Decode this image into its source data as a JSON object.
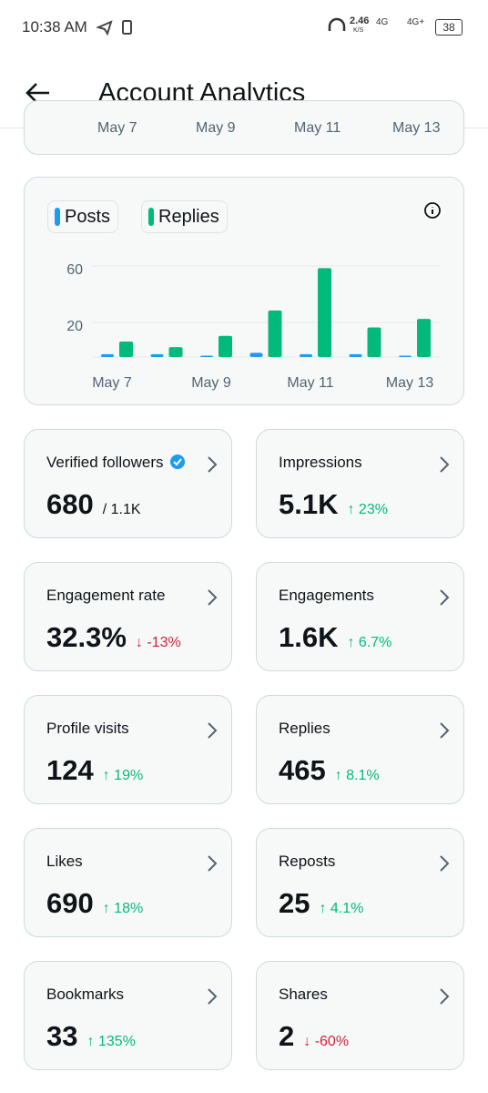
{
  "status_bar": {
    "time": "10:38 AM",
    "speed": "2.46",
    "speed_unit": "K/S",
    "network_1": "4G",
    "network_2": "4G+",
    "battery": "38"
  },
  "header": {
    "title": "Account Analytics"
  },
  "previous_card": {
    "labels": [
      "May 7",
      "May 9",
      "May 11",
      "May 13"
    ]
  },
  "chart_data": {
    "type": "bar",
    "categories": [
      "May 7",
      null,
      "May 9",
      null,
      "May 11",
      null,
      "May 13"
    ],
    "series": [
      {
        "name": "Posts",
        "color": "#1d9bf0",
        "values": [
          2,
          2,
          1,
          3,
          2,
          2,
          1
        ]
      },
      {
        "name": "Replies",
        "color": "#00ba7c",
        "values": [
          11,
          7,
          15,
          33,
          63,
          21,
          27
        ]
      }
    ],
    "ylim": [
      0,
      66
    ],
    "yticks": [
      20,
      60
    ],
    "grid": true
  },
  "cards": [
    {
      "label": "Verified followers",
      "value": "680",
      "detail": "/ 1.1K",
      "verified": true
    },
    {
      "label": "Impressions",
      "value": "5.1K",
      "change": "↑ 23%",
      "direction": "up"
    },
    {
      "label": "Engagement rate",
      "value": "32.3%",
      "change": "↓ -13%",
      "direction": "down"
    },
    {
      "label": "Engagements",
      "value": "1.6K",
      "change": "↑ 6.7%",
      "direction": "up"
    },
    {
      "label": "Profile visits",
      "value": "124",
      "change": "↑ 19%",
      "direction": "up"
    },
    {
      "label": "Replies",
      "value": "465",
      "change": "↑ 8.1%",
      "direction": "up"
    },
    {
      "label": "Likes",
      "value": "690",
      "change": "↑ 18%",
      "direction": "up"
    },
    {
      "label": "Reposts",
      "value": "25",
      "change": "↑ 4.1%",
      "direction": "up"
    },
    {
      "label": "Bookmarks",
      "value": "33",
      "change": "↑ 135%",
      "direction": "up"
    },
    {
      "label": "Shares",
      "value": "2",
      "change": "↓ -60%",
      "direction": "down"
    }
  ]
}
